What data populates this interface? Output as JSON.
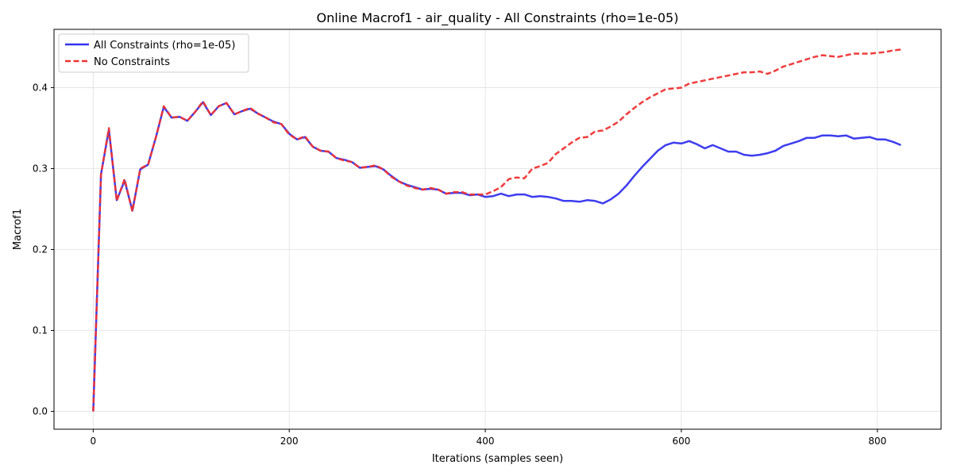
{
  "chart_data": {
    "type": "line",
    "title": "Online Macrof1 - air_quality - All Constraints (rho=1e-05)",
    "xlabel": "Iterations (samples seen)",
    "ylabel": "Macrof1",
    "xlim": [
      -40,
      865
    ],
    "ylim": [
      -0.022,
      0.472
    ],
    "xticks": [
      0,
      200,
      400,
      600,
      800
    ],
    "yticks": [
      0.0,
      0.1,
      0.2,
      0.3,
      0.4
    ],
    "xtick_labels": [
      "0",
      "200",
      "400",
      "600",
      "800"
    ],
    "ytick_labels": [
      "0.0",
      "0.1",
      "0.2",
      "0.3",
      "0.4"
    ],
    "grid": true,
    "legend_position": "top-left",
    "series": [
      {
        "name": "All Constraints (rho=1e-05)",
        "color": "#3333ee",
        "style": "solid",
        "x": [
          0,
          8,
          16,
          24,
          32,
          40,
          48,
          56,
          64,
          72,
          80,
          88,
          96,
          104,
          112,
          120,
          128,
          136,
          144,
          152,
          160,
          168,
          176,
          184,
          192,
          200,
          208,
          216,
          224,
          232,
          240,
          248,
          256,
          264,
          272,
          280,
          288,
          296,
          304,
          312,
          320,
          328,
          336,
          344,
          352,
          360,
          368,
          376,
          384,
          392,
          400,
          408,
          416,
          424,
          432,
          440,
          448,
          456,
          464,
          472,
          480,
          488,
          496,
          504,
          512,
          520,
          528,
          536,
          544,
          552,
          560,
          568,
          576,
          584,
          592,
          600,
          608,
          616,
          624,
          632,
          640,
          648,
          656,
          664,
          672,
          680,
          688,
          696,
          704,
          712,
          720,
          728,
          736,
          744,
          752,
          760,
          768,
          776,
          784,
          792,
          800,
          808,
          816,
          824
        ],
        "y": [
          0.0,
          0.293,
          0.348,
          0.261,
          0.285,
          0.248,
          0.299,
          0.305,
          0.339,
          0.376,
          0.363,
          0.364,
          0.359,
          0.37,
          0.382,
          0.366,
          0.377,
          0.381,
          0.367,
          0.371,
          0.374,
          0.368,
          0.363,
          0.358,
          0.355,
          0.343,
          0.336,
          0.339,
          0.327,
          0.322,
          0.321,
          0.313,
          0.311,
          0.308,
          0.301,
          0.302,
          0.303,
          0.299,
          0.291,
          0.284,
          0.28,
          0.277,
          0.274,
          0.275,
          0.274,
          0.269,
          0.27,
          0.27,
          0.267,
          0.268,
          0.265,
          0.266,
          0.269,
          0.266,
          0.268,
          0.268,
          0.265,
          0.266,
          0.265,
          0.263,
          0.26,
          0.26,
          0.259,
          0.261,
          0.26,
          0.257,
          0.262,
          0.269,
          0.279,
          0.291,
          0.302,
          0.312,
          0.322,
          0.329,
          0.332,
          0.331,
          0.334,
          0.33,
          0.325,
          0.329,
          0.325,
          0.321,
          0.321,
          0.317,
          0.316,
          0.317,
          0.319,
          0.322,
          0.328,
          0.331,
          0.334,
          0.338,
          0.338,
          0.341,
          0.341,
          0.34,
          0.341,
          0.337,
          0.338,
          0.339,
          0.336,
          0.336,
          0.333,
          0.329
        ]
      },
      {
        "name": "No Constraints",
        "color": "#ee3333",
        "style": "dashed",
        "x": [
          0,
          8,
          16,
          24,
          32,
          40,
          48,
          56,
          64,
          72,
          80,
          88,
          96,
          104,
          112,
          120,
          128,
          136,
          144,
          152,
          160,
          168,
          176,
          184,
          192,
          200,
          208,
          216,
          224,
          232,
          240,
          248,
          256,
          264,
          272,
          280,
          288,
          296,
          304,
          312,
          320,
          328,
          336,
          344,
          352,
          360,
          368,
          376,
          384,
          392,
          400,
          408,
          416,
          424,
          432,
          440,
          448,
          456,
          464,
          472,
          480,
          488,
          496,
          504,
          512,
          520,
          528,
          536,
          544,
          552,
          560,
          568,
          576,
          584,
          592,
          600,
          608,
          616,
          624,
          632,
          640,
          648,
          656,
          664,
          672,
          680,
          688,
          696,
          704,
          712,
          720,
          728,
          736,
          744,
          752,
          760,
          768,
          776,
          784,
          792,
          800,
          808,
          816,
          824
        ],
        "y": [
          0.0,
          0.293,
          0.35,
          0.26,
          0.287,
          0.247,
          0.3,
          0.305,
          0.339,
          0.377,
          0.363,
          0.364,
          0.359,
          0.37,
          0.383,
          0.366,
          0.377,
          0.381,
          0.367,
          0.371,
          0.375,
          0.368,
          0.363,
          0.357,
          0.355,
          0.342,
          0.336,
          0.34,
          0.327,
          0.322,
          0.321,
          0.313,
          0.31,
          0.308,
          0.301,
          0.302,
          0.304,
          0.299,
          0.29,
          0.284,
          0.279,
          0.276,
          0.274,
          0.276,
          0.274,
          0.269,
          0.271,
          0.271,
          0.268,
          0.268,
          0.268,
          0.272,
          0.277,
          0.287,
          0.289,
          0.288,
          0.3,
          0.303,
          0.307,
          0.318,
          0.325,
          0.332,
          0.338,
          0.339,
          0.346,
          0.347,
          0.352,
          0.358,
          0.367,
          0.375,
          0.382,
          0.388,
          0.393,
          0.398,
          0.399,
          0.4,
          0.405,
          0.407,
          0.409,
          0.411,
          0.413,
          0.415,
          0.417,
          0.419,
          0.419,
          0.42,
          0.417,
          0.421,
          0.426,
          0.429,
          0.432,
          0.435,
          0.438,
          0.44,
          0.439,
          0.438,
          0.44,
          0.442,
          0.442,
          0.442,
          0.443,
          0.444,
          0.446,
          0.447
        ]
      }
    ]
  }
}
